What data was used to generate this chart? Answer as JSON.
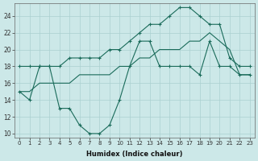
{
  "xlabel": "Humidex (Indice chaleur)",
  "bg_color": "#cce8e8",
  "grid_color": "#aad0d0",
  "line_color": "#1a6b5a",
  "xlim": [
    -0.5,
    23.5
  ],
  "ylim": [
    9.5,
    25.5
  ],
  "xticks": [
    0,
    1,
    2,
    3,
    4,
    5,
    6,
    7,
    8,
    9,
    10,
    11,
    12,
    13,
    14,
    15,
    16,
    17,
    18,
    19,
    20,
    21,
    22,
    23
  ],
  "yticks": [
    10,
    12,
    14,
    16,
    18,
    20,
    22,
    24
  ],
  "line1_x": [
    0,
    1,
    2,
    3,
    4,
    5,
    6,
    7,
    8,
    9,
    10,
    11,
    12,
    13,
    14,
    15,
    16,
    17,
    18,
    19,
    20,
    21,
    22,
    23
  ],
  "line1_y": [
    15,
    14,
    18,
    18,
    13,
    13,
    11,
    10,
    10,
    11,
    14,
    18,
    21,
    21,
    18,
    18,
    18,
    18,
    17,
    21,
    18,
    18,
    17,
    17
  ],
  "line2_x": [
    0,
    1,
    2,
    3,
    4,
    5,
    6,
    7,
    8,
    9,
    10,
    11,
    12,
    13,
    14,
    15,
    16,
    17,
    18,
    19,
    20,
    21,
    22,
    23
  ],
  "line2_y": [
    18,
    18,
    18,
    18,
    18,
    19,
    19,
    19,
    19,
    20,
    20,
    21,
    22,
    23,
    23,
    24,
    25,
    25,
    24,
    23,
    23,
    19,
    18,
    18
  ],
  "line3_x": [
    0,
    1,
    2,
    3,
    4,
    5,
    6,
    7,
    8,
    9,
    10,
    11,
    12,
    13,
    14,
    15,
    16,
    17,
    18,
    19,
    20,
    21,
    22,
    23
  ],
  "line3_y": [
    15,
    15,
    16,
    16,
    16,
    16,
    17,
    17,
    17,
    17,
    18,
    18,
    19,
    19,
    20,
    20,
    20,
    21,
    21,
    22,
    21,
    20,
    17,
    17
  ]
}
